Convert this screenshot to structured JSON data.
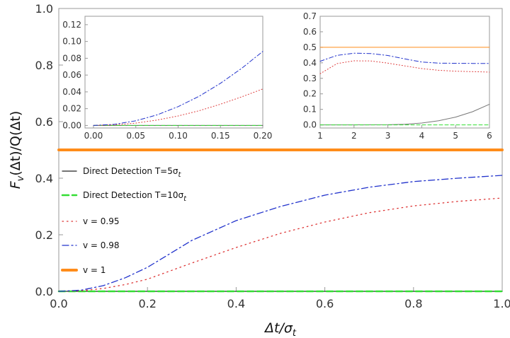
{
  "chart_data": [
    {
      "id": "main",
      "type": "line",
      "xlabel": "Δt/σt",
      "ylabel": "Fv(Δt)/Q(Δt)",
      "xlim": [
        0,
        1
      ],
      "ylim": [
        0,
        1
      ],
      "x_ticks": [
        "0.0",
        "0.2",
        "0.4",
        "0.6",
        "0.8",
        "1.0"
      ],
      "y_ticks": [
        "0.0",
        "0.2",
        "0.4",
        "0.6",
        "0.8",
        "1.0"
      ],
      "legend_position": "left",
      "series": [
        {
          "name": "Direct Detection T=5σt",
          "legend": {
            "main": "Direct Detection T=5σ",
            "sub": "t"
          },
          "color": "#222222",
          "style": "solid",
          "x": [
            0,
            0.2,
            0.4,
            0.6,
            0.8,
            1.0
          ],
          "values": [
            0,
            0,
            0,
            0,
            0,
            0
          ]
        },
        {
          "name": "Direct Detection T=10σt",
          "legend": {
            "main": "Direct Detection T=10σ",
            "sub": "t"
          },
          "color": "#33dd33",
          "style": "dashed",
          "x": [
            0,
            0.2,
            0.4,
            0.6,
            0.8,
            1.0
          ],
          "values": [
            0,
            0,
            0,
            0,
            0,
            0
          ]
        },
        {
          "name": "v = 0.95",
          "legend": {
            "main": "v = 0.95",
            "sub": ""
          },
          "color": "#dd3333",
          "style": "dotted",
          "x": [
            0,
            0.05,
            0.1,
            0.15,
            0.2,
            0.3,
            0.4,
            0.5,
            0.6,
            0.7,
            0.8,
            0.9,
            1.0
          ],
          "values": [
            0,
            0.002,
            0.01,
            0.024,
            0.043,
            0.1,
            0.155,
            0.205,
            0.245,
            0.278,
            0.302,
            0.318,
            0.33
          ]
        },
        {
          "name": "v = 0.98",
          "legend": {
            "main": "v = 0.98",
            "sub": ""
          },
          "color": "#2233cc",
          "style": "dashdot",
          "x": [
            0,
            0.05,
            0.1,
            0.15,
            0.2,
            0.3,
            0.4,
            0.5,
            0.6,
            0.7,
            0.8,
            0.9,
            1.0
          ],
          "values": [
            0,
            0.004,
            0.02,
            0.048,
            0.085,
            0.18,
            0.25,
            0.3,
            0.34,
            0.368,
            0.388,
            0.4,
            0.41
          ]
        },
        {
          "name": "v = 1",
          "legend": {
            "main": "v = 1",
            "sub": ""
          },
          "color": "#ff8c1a",
          "style": "thick",
          "x": [
            0,
            1.0
          ],
          "values": [
            0.5,
            0.5
          ]
        }
      ]
    },
    {
      "id": "inset_left",
      "type": "line",
      "xlim": [
        -0.01,
        0.2
      ],
      "ylim": [
        -0.003,
        0.13
      ],
      "x_ticks": [
        "0.00",
        "0.05",
        "0.10",
        "0.15",
        "0.20"
      ],
      "y_ticks": [
        "0.00",
        "0.02",
        "0.04",
        "0.06",
        "0.08",
        "0.10",
        "0.12"
      ],
      "series": [
        {
          "name": "Direct Detection T=5σt",
          "color": "#555555",
          "style": "solid",
          "x": [
            0,
            0.2
          ],
          "values": [
            0,
            0
          ]
        },
        {
          "name": "Direct Detection T=10σt",
          "color": "#33dd33",
          "style": "dashed",
          "x": [
            0,
            0.2
          ],
          "values": [
            0,
            0
          ]
        },
        {
          "name": "v = 0.95",
          "color": "#dd3333",
          "style": "dotted",
          "x": [
            0,
            0.025,
            0.05,
            0.075,
            0.1,
            0.125,
            0.15,
            0.175,
            0.2
          ],
          "values": [
            0,
            0.0007,
            0.0028,
            0.0064,
            0.0113,
            0.0176,
            0.0253,
            0.034,
            0.0435
          ]
        },
        {
          "name": "v = 0.98",
          "color": "#2233cc",
          "style": "dashdot",
          "x": [
            0,
            0.025,
            0.05,
            0.075,
            0.1,
            0.125,
            0.15,
            0.175,
            0.2
          ],
          "values": [
            0,
            0.0014,
            0.0056,
            0.0126,
            0.0224,
            0.0349,
            0.0502,
            0.068,
            0.0882
          ]
        }
      ]
    },
    {
      "id": "inset_right",
      "type": "line",
      "xlim": [
        1,
        6
      ],
      "ylim": [
        -0.02,
        0.7
      ],
      "x_ticks": [
        "1",
        "2",
        "3",
        "4",
        "5",
        "6"
      ],
      "y_ticks": [
        "0.0",
        "0.1",
        "0.2",
        "0.3",
        "0.4",
        "0.5",
        "0.6",
        "0.7"
      ],
      "series": [
        {
          "name": "Direct Detection T=5σt",
          "color": "#777777",
          "style": "solid",
          "x": [
            1,
            2,
            3,
            3.5,
            4,
            4.5,
            5,
            5.5,
            6
          ],
          "values": [
            0,
            0,
            0.001,
            0.004,
            0.012,
            0.027,
            0.05,
            0.085,
            0.133
          ]
        },
        {
          "name": "Direct Detection T=10σt",
          "color": "#33dd33",
          "style": "dashed",
          "x": [
            1,
            6
          ],
          "values": [
            0,
            0
          ]
        },
        {
          "name": "v = 0.95",
          "color": "#dd3333",
          "style": "dotted",
          "x": [
            1,
            1.5,
            2,
            2.5,
            3,
            3.5,
            4,
            4.5,
            5,
            5.5,
            6
          ],
          "values": [
            0.33,
            0.395,
            0.413,
            0.412,
            0.398,
            0.38,
            0.363,
            0.352,
            0.346,
            0.343,
            0.34
          ]
        },
        {
          "name": "v = 0.98",
          "color": "#2233cc",
          "style": "dashdot",
          "x": [
            1,
            1.5,
            2,
            2.5,
            3,
            3.5,
            4,
            4.5,
            5,
            5.5,
            6
          ],
          "values": [
            0.41,
            0.448,
            0.462,
            0.46,
            0.447,
            0.425,
            0.405,
            0.398,
            0.397,
            0.396,
            0.396
          ]
        },
        {
          "name": "v = 1",
          "color": "#ff8c1a",
          "style": "solid",
          "x": [
            1,
            6
          ],
          "values": [
            0.5,
            0.5
          ]
        }
      ]
    }
  ]
}
